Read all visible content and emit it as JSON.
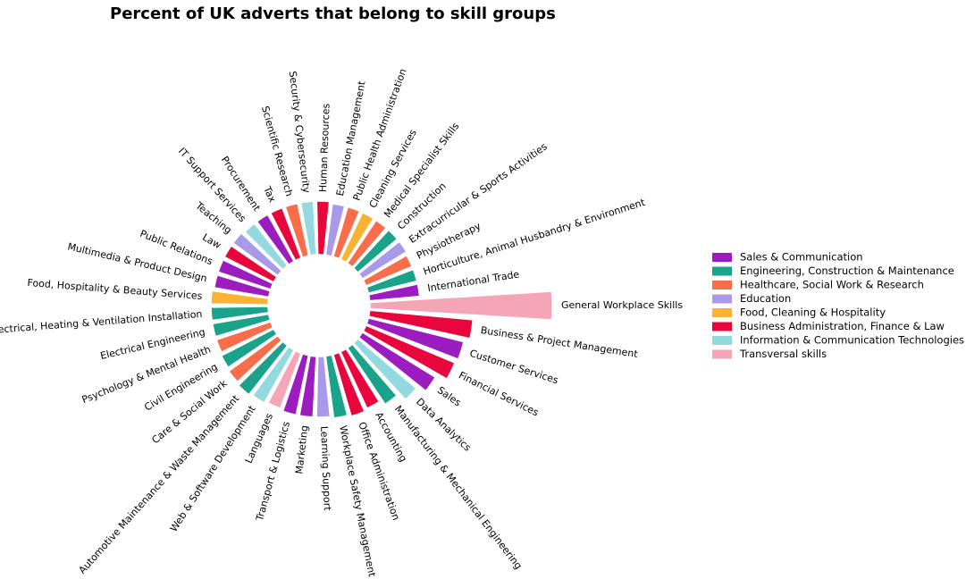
{
  "chart_data": {
    "type": "polar-bar",
    "title": "Percent of UK adverts that belong to skill groups",
    "categories": [
      "General Workplace Skills",
      "Business & Project Management",
      "Customer Services",
      "Financial Services",
      "Sales",
      "Data Analytics",
      "Manufacturing & Mechanical Engineering",
      "Accounting",
      "Office Administration",
      "Workplace Safety Management",
      "Learning Support",
      "Marketing",
      "Transport & Logistics",
      "Languages",
      "Web & Software Development",
      "Automotive Maintenance & Waste Management",
      "Care & Social Work",
      "Civil Engineering",
      "Psychology & Mental Health",
      "Electrical Engineering",
      "Electrical, Heating & Ventilation Installation",
      "Food, Hospitality & Beauty Services",
      "Multimedia & Product Design",
      "Public Relations",
      "Law",
      "Teaching",
      "IT Support Services",
      "Procurement",
      "Tax",
      "Scientific Research",
      "Security & Cybersecurity",
      "Human Resources",
      "Education Management",
      "Public Health Administration",
      "Cleaning Services",
      "Medical Specialist Skills",
      "Construction",
      "Extracurricular & Sports Activities",
      "Physiotherapy",
      "Horticulture, Animal Husbandry & Environment",
      "International Trade"
    ],
    "values": [
      10.2,
      5.8,
      5.5,
      5.4,
      4.8,
      4.3,
      3.8,
      3.5,
      3.6,
      3.5,
      3.4,
      3.4,
      3.4,
      3.3,
      3.4,
      3.5,
      3.4,
      3.3,
      3.2,
      3.2,
      3.2,
      3.2,
      3.1,
      3.1,
      3.1,
      3.1,
      3.0,
      3.0,
      3.0,
      3.0,
      3.0,
      3.0,
      2.9,
      2.9,
      2.9,
      2.9,
      2.9,
      2.9,
      2.8,
      2.8,
      2.8
    ],
    "colors": [
      "#f5a6b6",
      "#e8063c",
      "#9b1dbf",
      "#e8063c",
      "#9b1dbf",
      "#94d9e0",
      "#1aa38a",
      "#e8063c",
      "#e8063c",
      "#1aa38a",
      "#a89ae8",
      "#9b1dbf",
      "#9b1dbf",
      "#f5a6b6",
      "#94d9e0",
      "#1aa38a",
      "#f96d4a",
      "#1aa38a",
      "#f96d4a",
      "#1aa38a",
      "#1aa38a",
      "#f9b233",
      "#9b1dbf",
      "#9b1dbf",
      "#e8063c",
      "#a89ae8",
      "#94d9e0",
      "#9b1dbf",
      "#e8063c",
      "#f96d4a",
      "#94d9e0",
      "#e8063c",
      "#a89ae8",
      "#f96d4a",
      "#f9b233",
      "#f96d4a",
      "#1aa38a",
      "#a89ae8",
      "#f96d4a",
      "#1aa38a",
      "#9b1dbf"
    ],
    "legend": [
      {
        "name": "Sales & Communication",
        "color": "#9b1dbf"
      },
      {
        "name": "Engineering, Construction & Maintenance",
        "color": "#1aa38a"
      },
      {
        "name": "Healthcare, Social Work & Research",
        "color": "#f96d4a"
      },
      {
        "name": "Education",
        "color": "#a89ae8"
      },
      {
        "name": "Food, Cleaning & Hospitality",
        "color": "#f9b233"
      },
      {
        "name": "Business Administration, Finance & Law",
        "color": "#e8063c"
      },
      {
        "name": "Information & Communication Technologies",
        "color": "#94d9e0"
      },
      {
        "name": "Transversal skills",
        "color": "#f5a6b6"
      }
    ]
  }
}
